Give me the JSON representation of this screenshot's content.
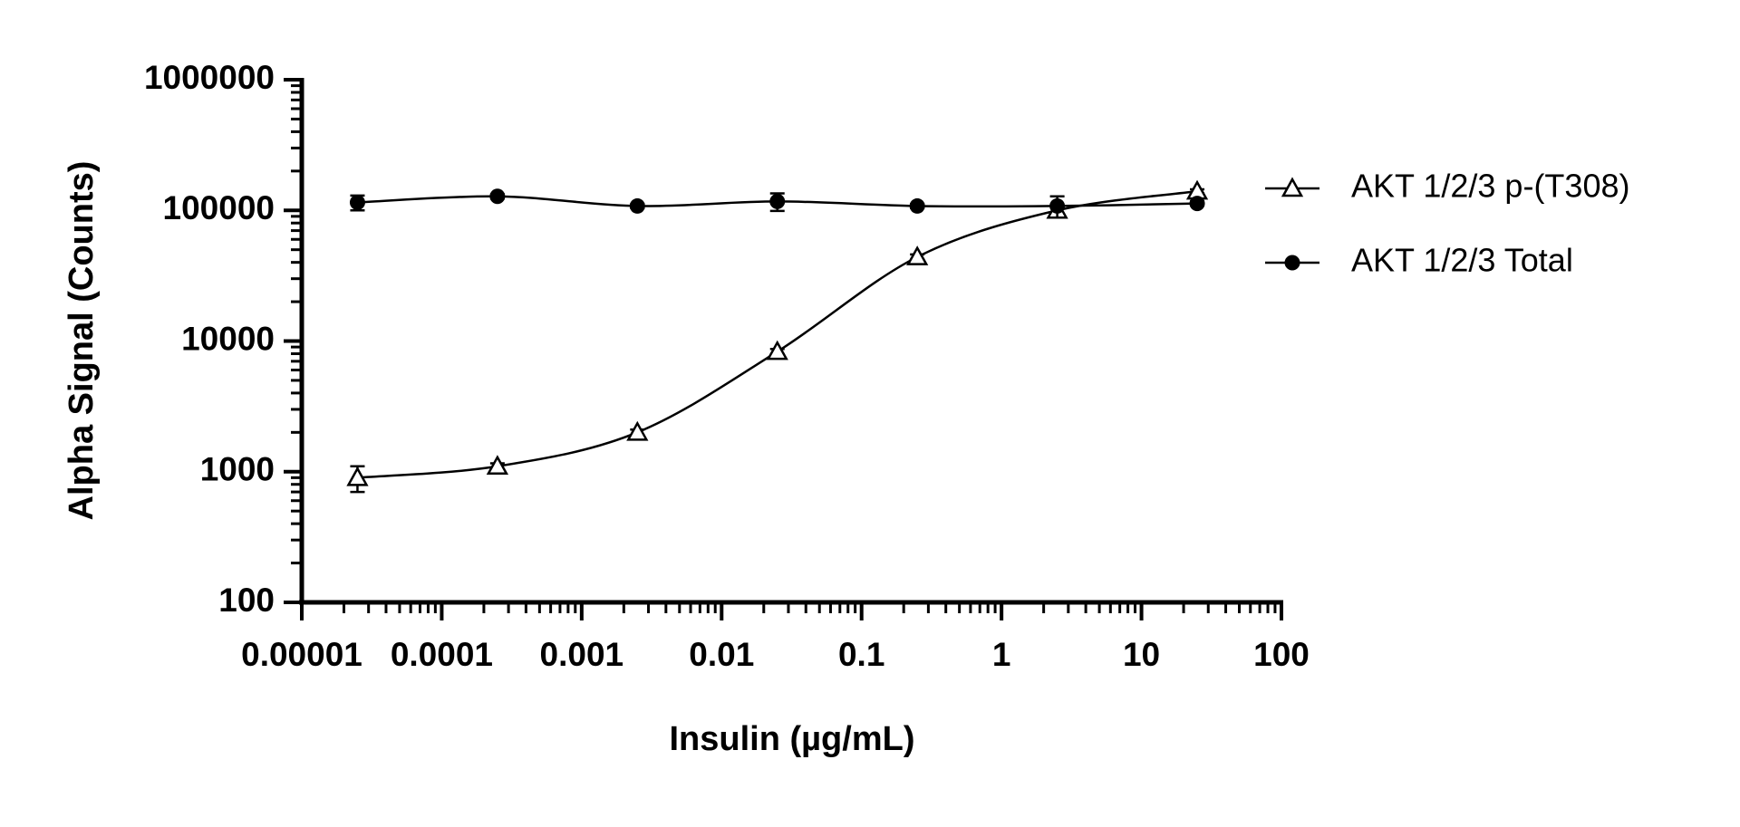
{
  "chart_data": {
    "type": "scatter",
    "x_label": "Insulin (µg/mL)",
    "y_label": "Alpha Signal (Counts)",
    "x": [
      2.5e-05,
      0.00025,
      0.0025,
      0.025,
      0.25,
      2.5,
      25
    ],
    "series": [
      {
        "name": "AKT 1/2/3 p-(T308)",
        "color": "#000000",
        "marker": "open-triangle",
        "values": [
          900,
          1100,
          2000,
          8300,
          44000,
          100000,
          140000
        ],
        "errors": [
          200,
          60,
          100,
          400,
          2000,
          8000,
          5000
        ]
      },
      {
        "name": "AKT 1/2/3 Total",
        "color": "#000000",
        "marker": "filled-circle",
        "values": [
          115000,
          128000,
          108000,
          117000,
          108000,
          108000,
          113000
        ],
        "errors": [
          15000,
          5000,
          4000,
          18000,
          4000,
          20000,
          4000
        ]
      }
    ],
    "xscale": "log",
    "yscale": "log",
    "xlim": [
      1e-05,
      100
    ],
    "ylim": [
      100,
      1000000
    ],
    "xticks": [
      {
        "value": 1e-05,
        "label": "0.00001"
      },
      0.0001,
      0.001,
      0.01,
      0.1,
      1,
      10,
      100
    ],
    "yticks": [
      100,
      1000,
      10000,
      100000,
      1000000
    ],
    "grid": false,
    "legend": "right"
  }
}
